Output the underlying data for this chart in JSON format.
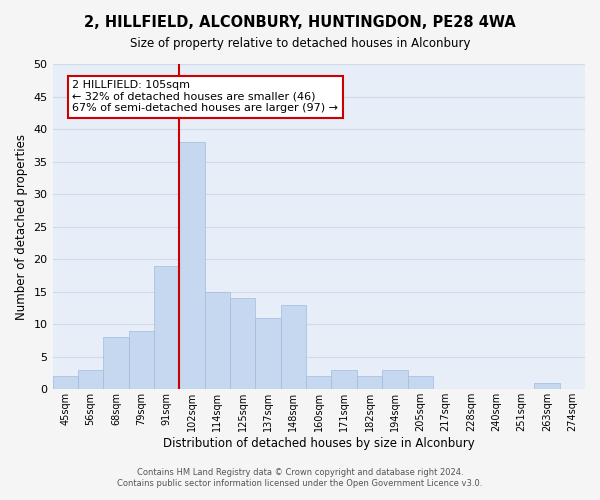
{
  "title": "2, HILLFIELD, ALCONBURY, HUNTINGDON, PE28 4WA",
  "subtitle": "Size of property relative to detached houses in Alconbury",
  "xlabel": "Distribution of detached houses by size in Alconbury",
  "ylabel": "Number of detached properties",
  "footer_line1": "Contains HM Land Registry data © Crown copyright and database right 2024.",
  "footer_line2": "Contains public sector information licensed under the Open Government Licence v3.0.",
  "bin_labels": [
    "45sqm",
    "56sqm",
    "68sqm",
    "79sqm",
    "91sqm",
    "102sqm",
    "114sqm",
    "125sqm",
    "137sqm",
    "148sqm",
    "160sqm",
    "171sqm",
    "182sqm",
    "194sqm",
    "205sqm",
    "217sqm",
    "228sqm",
    "240sqm",
    "251sqm",
    "263sqm",
    "274sqm"
  ],
  "bar_values": [
    2,
    3,
    8,
    9,
    19,
    38,
    15,
    14,
    11,
    13,
    2,
    3,
    2,
    3,
    2,
    0,
    0,
    0,
    0,
    1,
    0
  ],
  "bar_color": "#c5d8f0",
  "bar_edge_color": "#a0bce0",
  "reference_line_color": "#cc0000",
  "annotation_title": "2 HILLFIELD: 105sqm",
  "annotation_line1": "← 32% of detached houses are smaller (46)",
  "annotation_line2": "67% of semi-detached houses are larger (97) →",
  "annotation_box_color": "#ffffff",
  "annotation_box_edge": "#cc0000",
  "ylim": [
    0,
    50
  ],
  "yticks": [
    0,
    5,
    10,
    15,
    20,
    25,
    30,
    35,
    40,
    45,
    50
  ],
  "grid_color": "#d0daea",
  "background_color": "#e8eef8",
  "fig_background": "#f5f5f5"
}
